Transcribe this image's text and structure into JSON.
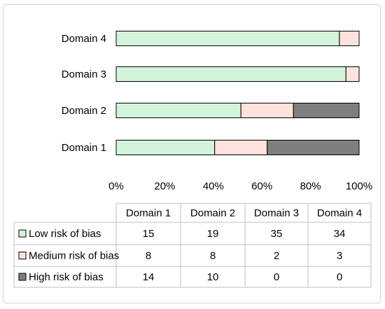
{
  "chart_data": {
    "type": "bar",
    "orientation": "horizontal",
    "stacked": "percent",
    "categories": [
      "Domain 1",
      "Domain 2",
      "Domain 3",
      "Domain 4"
    ],
    "series": [
      {
        "name": "Low risk of bias",
        "values": [
          15,
          19,
          35,
          34
        ],
        "color": "#d3f4db"
      },
      {
        "name": "Medium risk of bias",
        "values": [
          8,
          8,
          2,
          3
        ],
        "color": "#fde3dc"
      },
      {
        "name": "High risk of bias",
        "values": [
          14,
          10,
          0,
          0
        ],
        "color": "#7f7f7f"
      }
    ],
    "xticks": [
      "0%",
      "20%",
      "40%",
      "60%",
      "80%",
      "100%"
    ],
    "xlim": [
      0,
      100
    ],
    "grid": false,
    "data_table": true
  }
}
